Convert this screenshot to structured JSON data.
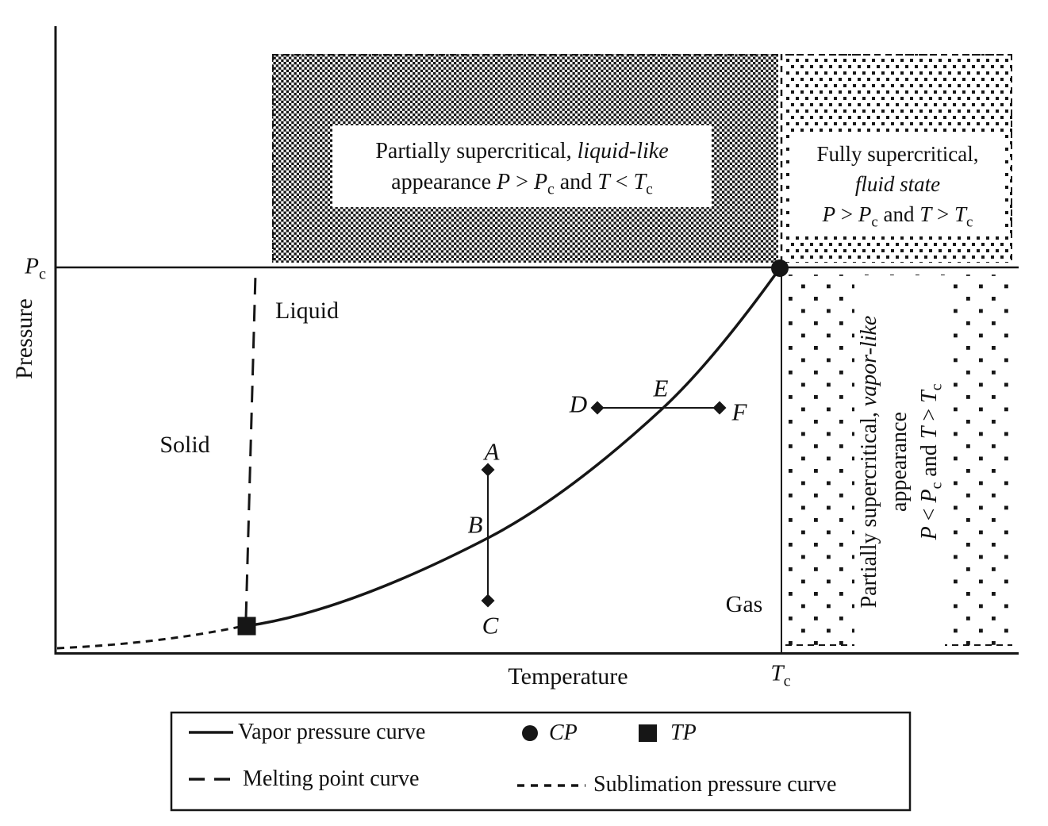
{
  "meta": {
    "ink_color": "#161616",
    "background_color": "#ffffff"
  },
  "axes": {
    "x_label": "Temperature",
    "y_label": "Pressure",
    "pc_tick": [
      {
        "t": "P",
        "i": true
      },
      {
        "t": "c",
        "sub": true
      }
    ],
    "tc_tick": [
      {
        "t": "T",
        "i": true
      },
      {
        "t": "c",
        "sub": true
      }
    ]
  },
  "phases": {
    "solid": "Solid",
    "liquid": "Liquid",
    "gas": "Gas"
  },
  "points": {
    "a": "A",
    "b": "B",
    "c": "C",
    "d": "D",
    "e": "E",
    "f": "F"
  },
  "regions": {
    "liquid_like": {
      "lines": [
        [
          {
            "t": "Partially supercritical, "
          },
          {
            "t": "liquid-like",
            "i": true
          }
        ],
        [
          {
            "t": "appearance "
          },
          {
            "t": "P",
            "i": true
          },
          {
            "t": " > "
          },
          {
            "t": "P",
            "i": true
          },
          {
            "t": "c",
            "sub": true
          },
          {
            "t": " and "
          },
          {
            "t": "T",
            "i": true
          },
          {
            "t": " < "
          },
          {
            "t": "T",
            "i": true
          },
          {
            "t": "c",
            "sub": true
          }
        ]
      ]
    },
    "fully_supercritical": {
      "lines": [
        [
          {
            "t": "Fully supercritical,"
          }
        ],
        [
          {
            "t": "fluid state",
            "i": true
          }
        ],
        [
          {
            "t": "P",
            "i": true
          },
          {
            "t": " > "
          },
          {
            "t": "P",
            "i": true
          },
          {
            "t": "c",
            "sub": true
          },
          {
            "t": " and "
          },
          {
            "t": "T",
            "i": true
          },
          {
            "t": " > "
          },
          {
            "t": "T",
            "i": true
          },
          {
            "t": "c",
            "sub": true
          }
        ]
      ]
    },
    "vapor_like": {
      "lines": [
        [
          {
            "t": "Partially supercritical, "
          },
          {
            "t": "vapor-like",
            "i": true
          }
        ],
        [
          {
            "t": "appearance"
          }
        ],
        [
          {
            "t": "P",
            "i": true
          },
          {
            "t": " < "
          },
          {
            "t": "P",
            "i": true
          },
          {
            "t": "c",
            "sub": true
          },
          {
            "t": " and "
          },
          {
            "t": "T",
            "i": true
          },
          {
            "t": " > "
          },
          {
            "t": "T",
            "i": true
          },
          {
            "t": "c",
            "sub": true
          }
        ]
      ]
    }
  },
  "legend": {
    "vapor": "Vapor pressure curve",
    "cp": "CP",
    "tp": "TP",
    "melting": "Melting point curve",
    "sublimation": "Sublimation pressure curve"
  },
  "chart_data": {
    "type": "line",
    "title": "Pressure-Temperature phase diagram with supercritical regions",
    "xlabel": "Temperature",
    "ylabel": "Pressure",
    "x_ticks": [
      "Tc"
    ],
    "y_ticks": [
      "Pc"
    ],
    "grid": false,
    "curves": [
      {
        "name": "Vapor pressure curve",
        "style": "solid",
        "from": "triple point (TP)",
        "to": "critical point (CP) at (Tc, Pc)",
        "shape": "concave-up rising"
      },
      {
        "name": "Melting point curve",
        "style": "long-dash",
        "from": "triple point (TP)",
        "to": "Pc level, nearly vertical"
      },
      {
        "name": "Sublimation pressure curve",
        "style": "short-dash",
        "from": "pressure axis near origin",
        "to": "triple point (TP)"
      }
    ],
    "markers": [
      {
        "label": "CP",
        "shape": "filled circle",
        "at": "(Tc, Pc)"
      },
      {
        "label": "TP",
        "shape": "filled square",
        "at": "triple point"
      },
      {
        "label": "A",
        "shape": "filled diamond",
        "note": "upper end of vertical isotherm segment A-C"
      },
      {
        "label": "B",
        "note": "where segment A-C crosses the vapor pressure curve"
      },
      {
        "label": "C",
        "shape": "filled diamond",
        "note": "lower end of segment A-C"
      },
      {
        "label": "D",
        "shape": "filled diamond",
        "note": "left end of horizontal isobar segment D-F"
      },
      {
        "label": "E",
        "note": "where segment D-F crosses the vapor pressure curve"
      },
      {
        "label": "F",
        "shape": "filled diamond",
        "note": "right end of segment D-F"
      }
    ],
    "regions": [
      {
        "name": "Solid",
        "pattern": "none"
      },
      {
        "name": "Liquid",
        "pattern": "none"
      },
      {
        "name": "Gas",
        "pattern": "none"
      },
      {
        "name": "Partially supercritical, liquid-like appearance P > Pc and T < Tc",
        "pattern": "dense dots",
        "location": "above Pc, left of Tc"
      },
      {
        "name": "Fully supercritical, fluid state P > Pc and T > Tc",
        "pattern": "medium dots",
        "location": "above Pc, right of Tc"
      },
      {
        "name": "Partially supercritical, vapor-like appearance P < Pc and T > Tc",
        "pattern": "sparse dots",
        "location": "below Pc, right of Tc"
      }
    ],
    "legend_position": "bottom box"
  }
}
